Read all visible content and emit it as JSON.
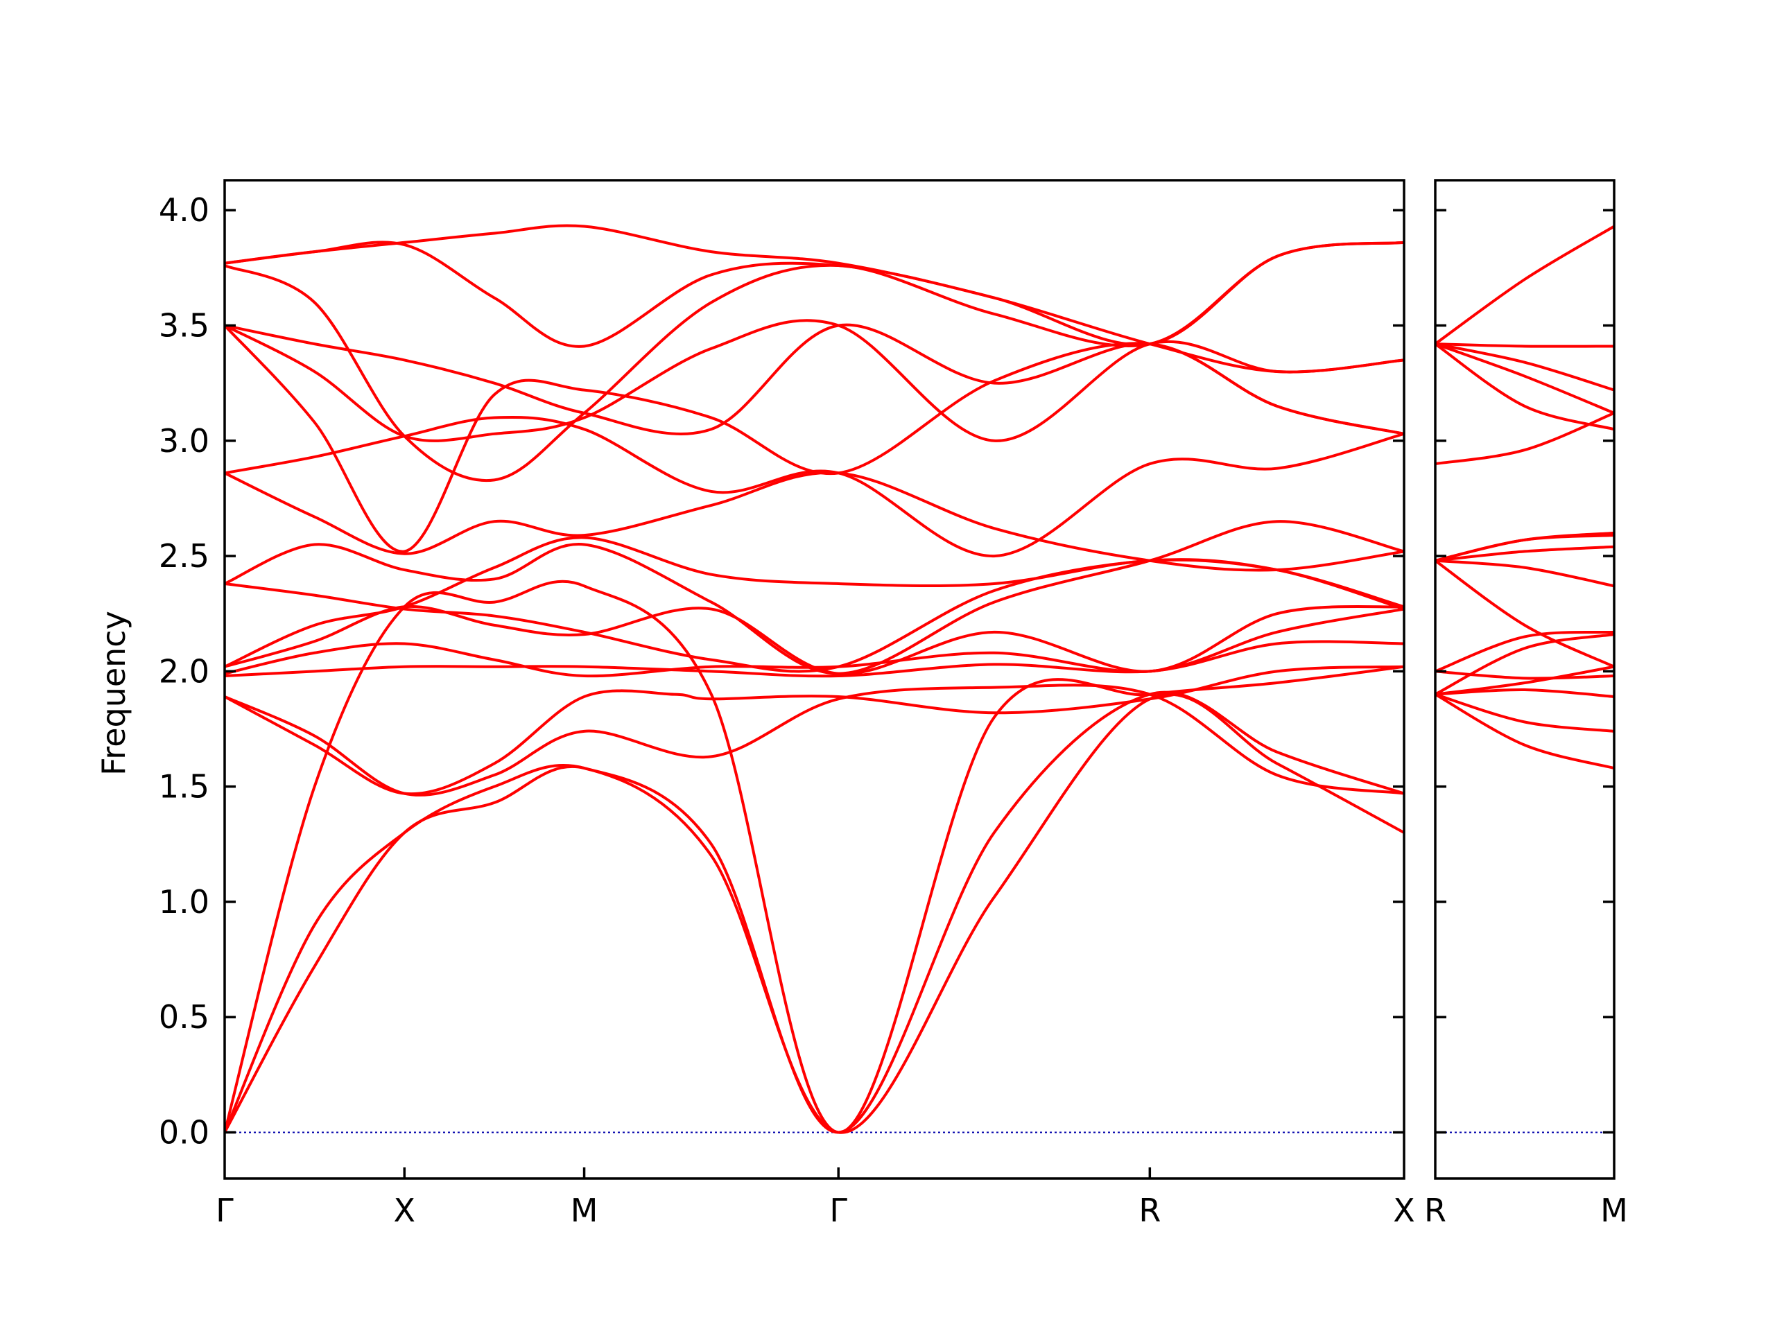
{
  "chart_data": {
    "type": "line",
    "title": "",
    "ylabel": "Frequency",
    "ylim": [
      -0.2,
      4.13
    ],
    "yticks": [
      0.0,
      0.5,
      1.0,
      1.5,
      2.0,
      2.5,
      3.0,
      3.5,
      4.0
    ],
    "ytick_labels": [
      "0.0",
      "0.5",
      "1.0",
      "1.5",
      "2.0",
      "2.5",
      "3.0",
      "3.5",
      "4.0"
    ],
    "band_color": "#ff0000",
    "zero_line_color": "#0000aa",
    "panels": [
      {
        "segments": [
          {
            "from": "Γ",
            "to": "X",
            "length": 1.0
          },
          {
            "from": "X",
            "to": "M",
            "length": 1.0
          },
          {
            "from": "M",
            "to": "Γ",
            "length": 1.4142
          },
          {
            "from": "Γ",
            "to": "R",
            "length": 1.7321
          },
          {
            "from": "R",
            "to": "X",
            "length": 1.4142
          }
        ],
        "point_labels": [
          "Γ",
          "X",
          "M",
          "Γ",
          "R",
          "X"
        ],
        "bands": [
          {
            "name": "",
            "x": [
              0,
              0.5,
              1,
              1.5,
              2,
              2.7071,
              3.4142,
              4.2803,
              5.1463,
              5.8534,
              6.5605
            ],
            "y": [
              0.0,
              0.72,
              1.3,
              1.43,
              1.58,
              1.2,
              0.0,
              1.02,
              1.88,
              1.6,
              1.3
            ]
          },
          {
            "name": "",
            "x": [
              0,
              0.5,
              1,
              1.5,
              2,
              2.7071,
              3.4142,
              4.2803,
              5.1463,
              5.8534,
              6.5605
            ],
            "y": [
              0.0,
              0.9,
              1.3,
              1.5,
              1.58,
              1.25,
              0.0,
              1.3,
              1.9,
              1.65,
              1.47
            ]
          },
          {
            "name": "",
            "x": [
              0,
              0.5,
              1,
              1.5,
              2,
              2.7071,
              3.4142,
              4.2803,
              5.1463,
              5.8534,
              6.5605
            ],
            "y": [
              0.0,
              1.5,
              2.28,
              2.3,
              2.37,
              1.9,
              0.0,
              1.8,
              1.9,
              1.95,
              2.02
            ]
          },
          {
            "name": "",
            "x": [
              0,
              0.5,
              1,
              1.5,
              2,
              2.5,
              2.7071,
              3.4142,
              4.2803,
              5.1463,
              5.8534,
              6.5605
            ],
            "y": [
              1.89,
              1.68,
              1.47,
              1.6,
              1.89,
              1.9,
              1.88,
              1.89,
              1.82,
              1.88,
              2.0,
              2.02
            ]
          },
          {
            "name": "",
            "x": [
              0,
              0.5,
              1,
              1.5,
              2,
              2.7071,
              3.4142,
              4.2803,
              5.1463,
              5.8534,
              6.5605
            ],
            "y": [
              1.89,
              1.72,
              1.47,
              1.55,
              1.74,
              1.63,
              1.88,
              1.93,
              1.9,
              1.55,
              1.47
            ]
          },
          {
            "name": "",
            "x": [
              0,
              0.5,
              1,
              1.5,
              2,
              2.7071,
              3.4142,
              4.2803,
              5.1463,
              5.8534,
              6.5605
            ],
            "y": [
              1.98,
              2.0,
              2.02,
              2.02,
              2.02,
              2.0,
              1.98,
              2.03,
              2.0,
              2.12,
              2.12
            ]
          },
          {
            "name": "",
            "x": [
              0,
              0.5,
              1,
              1.5,
              2,
              2.7071,
              3.4142,
              4.2803,
              5.1463,
              5.8534,
              6.5605
            ],
            "y": [
              1.99,
              2.08,
              2.12,
              2.05,
              1.98,
              2.02,
              2.02,
              2.08,
              2.0,
              2.17,
              2.27
            ]
          },
          {
            "name": "",
            "x": [
              0,
              0.5,
              1,
              1.5,
              2,
              2.7071,
              3.4142,
              4.2803,
              5.1463,
              5.8534,
              6.5605
            ],
            "y": [
              2.02,
              2.13,
              2.28,
              2.2,
              2.16,
              2.27,
              1.99,
              2.17,
              2.0,
              2.25,
              2.28
            ]
          },
          {
            "name": "",
            "x": [
              0,
              0.5,
              1,
              1.5,
              2,
              2.7071,
              3.4142,
              4.2803,
              5.1463,
              5.8534,
              6.5605
            ],
            "y": [
              2.38,
              2.33,
              2.27,
              2.24,
              2.17,
              2.05,
              2.02,
              2.35,
              2.48,
              2.44,
              2.27
            ]
          },
          {
            "name": "",
            "x": [
              0,
              0.5,
              1,
              1.5,
              2,
              2.7071,
              3.4142,
              4.2803,
              5.1463,
              5.8534,
              6.5605
            ],
            "y": [
              2.38,
              2.55,
              2.44,
              2.4,
              2.55,
              2.3,
              1.99,
              2.3,
              2.48,
              2.65,
              2.52
            ]
          },
          {
            "name": "",
            "x": [
              0,
              0.5,
              1,
              1.5,
              2,
              2.7071,
              3.4142,
              4.2803,
              5.1463,
              5.8534,
              6.5605
            ],
            "y": [
              2.02,
              2.2,
              2.28,
              2.45,
              2.58,
              2.42,
              2.38,
              2.38,
              2.48,
              2.44,
              2.28
            ]
          },
          {
            "name": "",
            "x": [
              0,
              0.5,
              1,
              1.5,
              2,
              2.7071,
              3.4142,
              4.2803,
              5.1463,
              5.8534,
              6.5605
            ],
            "y": [
              2.86,
              2.67,
              2.51,
              2.65,
              2.59,
              2.72,
              2.86,
              2.62,
              2.48,
              2.44,
              2.52
            ]
          },
          {
            "name": "",
            "x": [
              0,
              0.5,
              1,
              1.5,
              2,
              2.7071,
              3.4142,
              4.2803,
              5.1463,
              5.8534,
              6.5605
            ],
            "y": [
              2.86,
              2.93,
              3.02,
              3.1,
              3.05,
              2.78,
              2.86,
              2.5,
              2.9,
              2.88,
              3.03
            ]
          },
          {
            "name": "",
            "x": [
              0,
              0.5,
              1,
              1.5,
              2,
              2.7071,
              3.4142,
              4.2803,
              5.1463,
              5.8534,
              6.5605
            ],
            "y": [
              3.5,
              3.3,
              3.02,
              3.03,
              3.1,
              3.4,
              3.5,
              3.0,
              3.42,
              3.3,
              3.35
            ]
          },
          {
            "name": "",
            "x": [
              0,
              0.5,
              1,
              1.5,
              2,
              2.7071,
              3.4142,
              4.2803,
              5.1463,
              5.8534,
              6.5605
            ],
            "y": [
              3.5,
              3.08,
              2.52,
              3.2,
              3.22,
              3.1,
              2.86,
              3.26,
              3.42,
              3.15,
              3.03
            ]
          },
          {
            "name": "",
            "x": [
              0,
              0.5,
              1,
              1.5,
              2,
              2.7071,
              3.4142,
              4.2803,
              5.1463,
              5.8534,
              6.5605
            ],
            "y": [
              3.5,
              3.42,
              3.35,
              3.25,
              3.12,
              3.05,
              3.5,
              3.25,
              3.42,
              3.15,
              3.03
            ]
          },
          {
            "name": "",
            "x": [
              0,
              0.5,
              1,
              1.5,
              2,
              2.7071,
              3.4142,
              4.2803,
              5.1463,
              5.8534,
              6.5605
            ],
            "y": [
              3.76,
              3.6,
              3.02,
              2.83,
              3.12,
              3.6,
              3.76,
              3.55,
              3.42,
              3.8,
              3.86
            ]
          },
          {
            "name": "",
            "x": [
              0,
              0.5,
              1,
              1.5,
              2,
              2.7071,
              3.4142,
              4.2803,
              5.1463,
              5.8534,
              6.5605
            ],
            "y": [
              3.77,
              3.82,
              3.85,
              3.62,
              3.41,
              3.72,
              3.76,
              3.62,
              3.42,
              3.8,
              3.86
            ]
          },
          {
            "name": "",
            "x": [
              0,
              0.5,
              1,
              1.5,
              2,
              2.7071,
              3.4142,
              4.2803,
              5.1463,
              5.8534,
              6.5605
            ],
            "y": [
              3.77,
              3.82,
              3.86,
              3.9,
              3.93,
              3.82,
              3.77,
              3.62,
              3.42,
              3.3,
              3.35
            ]
          }
        ]
      },
      {
        "segments": [
          {
            "from": "R",
            "to": "M",
            "length": 1.0
          }
        ],
        "point_labels": [
          "R",
          "M"
        ],
        "bands": [
          {
            "name": "",
            "x": [
              0,
              0.5,
              1
            ],
            "y": [
              1.9,
              1.68,
              1.58
            ]
          },
          {
            "name": "",
            "x": [
              0,
              0.5,
              1
            ],
            "y": [
              1.9,
              1.78,
              1.74
            ]
          },
          {
            "name": "",
            "x": [
              0,
              0.5,
              1
            ],
            "y": [
              1.9,
              1.92,
              1.89
            ]
          },
          {
            "name": "",
            "x": [
              0,
              0.5,
              1
            ],
            "y": [
              1.9,
              1.95,
              2.02
            ]
          },
          {
            "name": "",
            "x": [
              0,
              0.5,
              1
            ],
            "y": [
              2.0,
              1.97,
              1.98
            ]
          },
          {
            "name": "",
            "x": [
              0,
              0.5,
              1
            ],
            "y": [
              1.9,
              2.1,
              2.16
            ]
          },
          {
            "name": "",
            "x": [
              0,
              0.5,
              1
            ],
            "y": [
              2.0,
              2.15,
              2.17
            ]
          },
          {
            "name": "",
            "x": [
              0,
              0.5,
              1
            ],
            "y": [
              2.48,
              2.2,
              2.02
            ]
          },
          {
            "name": "",
            "x": [
              0,
              0.5,
              1
            ],
            "y": [
              2.48,
              2.45,
              2.37
            ]
          },
          {
            "name": "",
            "x": [
              0,
              0.5,
              1
            ],
            "y": [
              2.48,
              2.52,
              2.54
            ]
          },
          {
            "name": "",
            "x": [
              0,
              0.5,
              1
            ],
            "y": [
              2.48,
              2.57,
              2.59
            ]
          },
          {
            "name": "",
            "x": [
              0,
              0.5,
              1
            ],
            "y": [
              2.48,
              2.57,
              2.6
            ]
          },
          {
            "name": "",
            "x": [
              0,
              0.5,
              1
            ],
            "y": [
              2.9,
              2.96,
              3.12
            ]
          },
          {
            "name": "",
            "x": [
              0,
              0.5,
              1
            ],
            "y": [
              3.42,
              3.15,
              3.05
            ]
          },
          {
            "name": "",
            "x": [
              0,
              0.5,
              1
            ],
            "y": [
              3.42,
              3.28,
              3.12
            ]
          },
          {
            "name": "",
            "x": [
              0,
              0.5,
              1
            ],
            "y": [
              3.42,
              3.34,
              3.22
            ]
          },
          {
            "name": "",
            "x": [
              0,
              0.5,
              1
            ],
            "y": [
              3.42,
              3.41,
              3.41
            ]
          },
          {
            "name": "",
            "x": [
              0,
              0.5,
              1
            ],
            "y": [
              3.42,
              3.7,
              3.93
            ]
          }
        ]
      }
    ]
  }
}
